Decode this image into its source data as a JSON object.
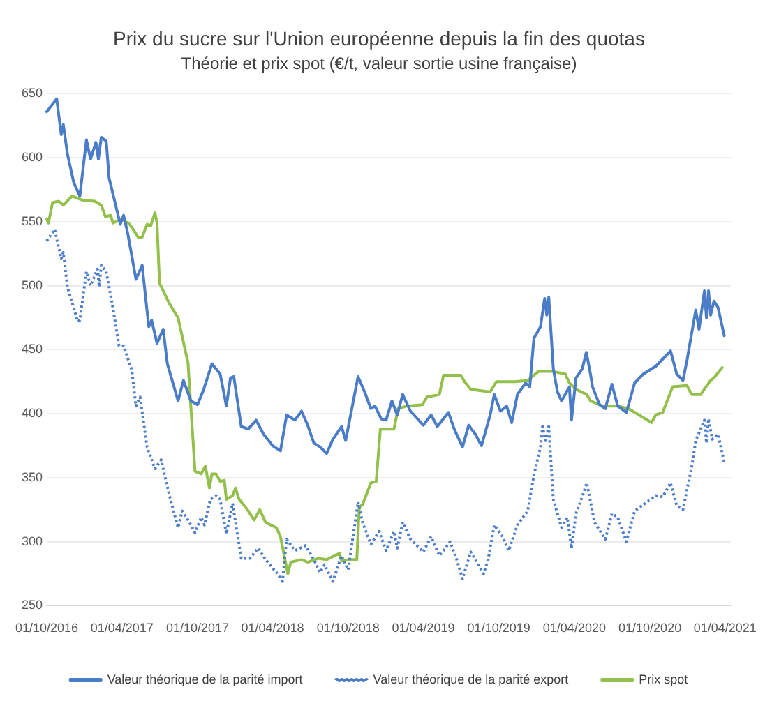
{
  "chart_data": {
    "type": "line",
    "title": "Prix du sucre sur l'Union européenne depuis la fin des quotas",
    "subtitle": "Théorie et prix spot (€/t, valeur sortie usine française)",
    "xlim": [
      "2016-10-01",
      "2021-04-15"
    ],
    "xticks": [
      {
        "value": "2016-10-01",
        "label": "01/10/2016"
      },
      {
        "value": "2017-04-01",
        "label": "01/04/2017"
      },
      {
        "value": "2017-10-01",
        "label": "01/10/2017"
      },
      {
        "value": "2018-04-01",
        "label": "01/04/2018"
      },
      {
        "value": "2018-10-01",
        "label": "01/10/2018"
      },
      {
        "value": "2019-04-01",
        "label": "01/04/2019"
      },
      {
        "value": "2019-10-01",
        "label": "01/10/2019"
      },
      {
        "value": "2020-04-01",
        "label": "01/04/2020"
      },
      {
        "value": "2020-10-01",
        "label": "01/10/2020"
      },
      {
        "value": "2021-04-01",
        "label": "01/04/2021"
      }
    ],
    "ylim": [
      250,
      650
    ],
    "yticks": [
      250,
      300,
      350,
      400,
      450,
      500,
      550,
      600,
      650
    ],
    "grid": "y",
    "legend": "bottom",
    "marker": "none",
    "series": [
      {
        "name": "Valeur théorique de la parité import",
        "color": "#4a7cc7",
        "line_style": "solid",
        "x": [
          "2016-10-01",
          "2016-10-25",
          "2016-11-05",
          "2016-11-10",
          "2016-11-20",
          "2016-12-05",
          "2016-12-20",
          "2017-01-05",
          "2017-01-15",
          "2017-01-28",
          "2017-02-03",
          "2017-02-10",
          "2017-02-22",
          "2017-03-01",
          "2017-03-28",
          "2017-04-05",
          "2017-04-15",
          "2017-05-05",
          "2017-05-20",
          "2017-06-05",
          "2017-06-12",
          "2017-06-25",
          "2017-07-10",
          "2017-07-20",
          "2017-08-15",
          "2017-08-28",
          "2017-09-15",
          "2017-10-01",
          "2017-10-15",
          "2017-10-25",
          "2017-11-05",
          "2017-11-25",
          "2017-12-10",
          "2017-12-20",
          "2017-12-28",
          "2018-01-15",
          "2018-02-01",
          "2018-02-20",
          "2018-03-10",
          "2018-04-01",
          "2018-04-20",
          "2018-05-05",
          "2018-05-25",
          "2018-06-10",
          "2018-06-25",
          "2018-07-10",
          "2018-07-25",
          "2018-08-10",
          "2018-08-25",
          "2018-09-15",
          "2018-09-25",
          "2018-10-25",
          "2018-11-10",
          "2018-11-25",
          "2018-12-05",
          "2018-12-20",
          "2019-01-01",
          "2019-01-15",
          "2019-01-28",
          "2019-02-10",
          "2019-03-01",
          "2019-04-01",
          "2019-04-20",
          "2019-05-05",
          "2019-06-01",
          "2019-06-15",
          "2019-07-05",
          "2019-07-20",
          "2019-08-05",
          "2019-08-20",
          "2019-09-10",
          "2019-09-20",
          "2019-10-05",
          "2019-10-20",
          "2019-11-01",
          "2019-11-15",
          "2019-12-05",
          "2019-12-15",
          "2019-12-25",
          "2020-01-10",
          "2020-01-20",
          "2020-01-25",
          "2020-01-30",
          "2020-02-10",
          "2020-02-20",
          "2020-03-01",
          "2020-03-20",
          "2020-03-25",
          "2020-04-05",
          "2020-04-20",
          "2020-04-30",
          "2020-05-10",
          "2020-05-15",
          "2020-06-01",
          "2020-06-15",
          "2020-07-01",
          "2020-07-15",
          "2020-08-05",
          "2020-08-25",
          "2020-09-15",
          "2020-10-15",
          "2020-11-20",
          "2020-12-05",
          "2020-12-20",
          "2020-12-30",
          "2021-01-20",
          "2021-01-28",
          "2021-02-10",
          "2021-02-15",
          "2021-02-20",
          "2021-02-25",
          "2021-03-05",
          "2021-03-15",
          "2021-03-30"
        ],
        "values": [
          636,
          646,
          618,
          626,
          603,
          581,
          570,
          614,
          599,
          612,
          599,
          616,
          613,
          584,
          548,
          555,
          541,
          505,
          516,
          468,
          473,
          455,
          466,
          439,
          410,
          426,
          410,
          407,
          418,
          428,
          439,
          431,
          406,
          428,
          429,
          390,
          388,
          395,
          384,
          375,
          371,
          399,
          395,
          402,
          391,
          377,
          374,
          369,
          380,
          390,
          379,
          429,
          417,
          404,
          406,
          396,
          395,
          410,
          399,
          415,
          402,
          391,
          399,
          390,
          401,
          388,
          374,
          391,
          384,
          375,
          399,
          415,
          402,
          406,
          393,
          415,
          424,
          421,
          459,
          468,
          490,
          477,
          491,
          435,
          417,
          410,
          421,
          395,
          428,
          435,
          448,
          431,
          421,
          407,
          404,
          423,
          406,
          401,
          424,
          431,
          437,
          449,
          431,
          426,
          442,
          481,
          466,
          496,
          475,
          496,
          477,
          488,
          483,
          461
        ]
      },
      {
        "name": "Valeur théorique de la parité export",
        "color": "#4a7cc7",
        "line_style": "dotted",
        "x": [
          "2016-10-01",
          "2016-10-20",
          "2016-11-05",
          "2016-11-10",
          "2016-11-20",
          "2016-12-05",
          "2016-12-15",
          "2016-12-20",
          "2017-01-05",
          "2017-01-15",
          "2017-02-01",
          "2017-02-05",
          "2017-02-10",
          "2017-02-22",
          "2017-03-10",
          "2017-03-25",
          "2017-04-05",
          "2017-04-25",
          "2017-05-05",
          "2017-05-15",
          "2017-06-01",
          "2017-06-20",
          "2017-07-05",
          "2017-07-25",
          "2017-08-15",
          "2017-08-25",
          "2017-09-10",
          "2017-09-25",
          "2017-10-10",
          "2017-10-18",
          "2017-11-01",
          "2017-11-15",
          "2017-11-25",
          "2017-12-10",
          "2017-12-25",
          "2018-01-15",
          "2018-02-05",
          "2018-02-25",
          "2018-03-15",
          "2018-04-10",
          "2018-04-25",
          "2018-05-05",
          "2018-05-25",
          "2018-06-20",
          "2018-07-10",
          "2018-07-25",
          "2018-08-05",
          "2018-08-25",
          "2018-09-15",
          "2018-10-01",
          "2018-10-25",
          "2018-11-05",
          "2018-11-25",
          "2018-12-15",
          "2019-01-01",
          "2019-01-20",
          "2019-01-28",
          "2019-02-10",
          "2019-03-01",
          "2019-04-01",
          "2019-04-20",
          "2019-05-10",
          "2019-06-05",
          "2019-06-20",
          "2019-07-05",
          "2019-07-25",
          "2019-08-25",
          "2019-09-05",
          "2019-09-20",
          "2019-10-10",
          "2019-10-25",
          "2019-11-15",
          "2019-12-10",
          "2019-12-25",
          "2020-01-10",
          "2020-01-15",
          "2020-01-22",
          "2020-01-30",
          "2020-02-10",
          "2020-03-01",
          "2020-03-15",
          "2020-03-25",
          "2020-04-05",
          "2020-04-20",
          "2020-05-01",
          "2020-05-20",
          "2020-06-15",
          "2020-07-01",
          "2020-07-15",
          "2020-08-05",
          "2020-08-25",
          "2020-10-15",
          "2020-11-01",
          "2020-11-20",
          "2020-12-05",
          "2020-12-20",
          "2021-01-10",
          "2021-01-20",
          "2021-02-10",
          "2021-02-15",
          "2021-02-20",
          "2021-03-01",
          "2021-03-15",
          "2021-03-30"
        ],
        "values": [
          535,
          544,
          521,
          526,
          499,
          483,
          472,
          473,
          511,
          500,
          513,
          499,
          516,
          511,
          483,
          453,
          453,
          434,
          406,
          413,
          374,
          357,
          364,
          336,
          311,
          324,
          316,
          307,
          319,
          313,
          333,
          336,
          333,
          306,
          330,
          287,
          287,
          295,
          286,
          276,
          269,
          302,
          293,
          297,
          286,
          276,
          282,
          269,
          289,
          278,
          331,
          315,
          298,
          308,
          293,
          308,
          295,
          315,
          302,
          292,
          304,
          289,
          300,
          287,
          271,
          292,
          275,
          286,
          313,
          304,
          293,
          313,
          324,
          352,
          374,
          390,
          379,
          390,
          333,
          311,
          319,
          295,
          322,
          335,
          346,
          315,
          302,
          322,
          319,
          300,
          324,
          336,
          335,
          346,
          328,
          325,
          358,
          379,
          395,
          377,
          396,
          380,
          384,
          362
        ]
      },
      {
        "name": "Prix spot",
        "color": "#92c04b",
        "line_style": "solid",
        "x": [
          "2016-10-01",
          "2016-10-05",
          "2016-10-15",
          "2016-10-30",
          "2016-11-10",
          "2016-12-01",
          "2016-12-25",
          "2017-01-25",
          "2017-02-10",
          "2017-02-20",
          "2017-03-05",
          "2017-03-10",
          "2017-04-01",
          "2017-04-20",
          "2017-05-10",
          "2017-05-20",
          "2017-06-01",
          "2017-06-10",
          "2017-06-20",
          "2017-06-25",
          "2017-07-01",
          "2017-07-25",
          "2017-08-15",
          "2017-09-01",
          "2017-09-08",
          "2017-09-25",
          "2017-10-10",
          "2017-10-20",
          "2017-10-30",
          "2017-11-05",
          "2017-11-15",
          "2017-11-25",
          "2017-12-05",
          "2017-12-10",
          "2017-12-25",
          "2018-01-01",
          "2018-01-10",
          "2018-01-30",
          "2018-02-15",
          "2018-03-01",
          "2018-03-15",
          "2018-04-10",
          "2018-04-20",
          "2018-05-01",
          "2018-05-08",
          "2018-05-15",
          "2018-06-10",
          "2018-06-25",
          "2018-07-20",
          "2018-08-10",
          "2018-09-10",
          "2018-09-15",
          "2018-10-05",
          "2018-10-22",
          "2018-10-28",
          "2018-11-05",
          "2018-11-25",
          "2018-12-08",
          "2018-12-18",
          "2019-01-20",
          "2019-01-30",
          "2019-02-20",
          "2019-03-30",
          "2019-04-10",
          "2019-05-10",
          "2019-05-20",
          "2019-07-01",
          "2019-07-10",
          "2019-07-25",
          "2019-09-10",
          "2019-09-25",
          "2019-11-10",
          "2019-12-10",
          "2020-01-05",
          "2020-02-10",
          "2020-03-10",
          "2020-03-20",
          "2020-04-05",
          "2020-05-01",
          "2020-05-10",
          "2020-06-10",
          "2020-07-15",
          "2020-08-10",
          "2020-10-05",
          "2020-10-15",
          "2020-11-01",
          "2020-11-25",
          "2020-12-30",
          "2021-01-10",
          "2021-02-01",
          "2021-02-25",
          "2021-03-05",
          "2021-03-25"
        ],
        "values": [
          552,
          549,
          565,
          566,
          563,
          570,
          567,
          566,
          563,
          554,
          555,
          549,
          552,
          548,
          538,
          538,
          548,
          547,
          557,
          549,
          502,
          486,
          475,
          450,
          440,
          355,
          353,
          359,
          342,
          353,
          353,
          347,
          348,
          333,
          336,
          342,
          333,
          325,
          317,
          325,
          315,
          311,
          304,
          286,
          275,
          284,
          286,
          284,
          287,
          286,
          291,
          285,
          286,
          286,
          327,
          329,
          346,
          347,
          388,
          388,
          404,
          406,
          407,
          413,
          415,
          430,
          430,
          425,
          419,
          417,
          425,
          425,
          426,
          433,
          433,
          431,
          424,
          419,
          415,
          410,
          406,
          406,
          404,
          393,
          399,
          401,
          421,
          422,
          415,
          415,
          426,
          428,
          436
        ]
      }
    ]
  }
}
